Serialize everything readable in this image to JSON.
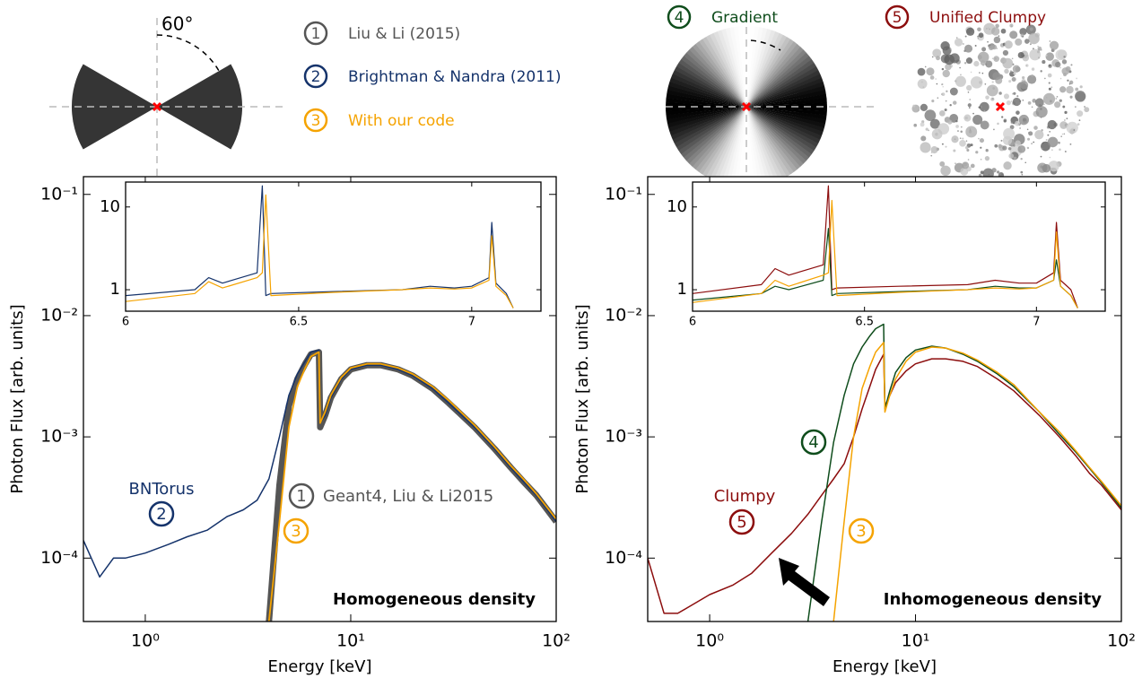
{
  "angle_label": "60°",
  "legend": [
    {
      "number": "1",
      "label": "Liu & Li (2015)",
      "color": "#555555"
    },
    {
      "number": "2",
      "label": "Brightman & Nandra (2011)",
      "color": "#15336b"
    },
    {
      "number": "3",
      "label": "With our code",
      "color": "#f5a300"
    },
    {
      "number": "4",
      "label": "Gradient",
      "color": "#0f4d1c"
    },
    {
      "number": "5",
      "label": "Unified Clumpy",
      "color": "#8c0d0d"
    }
  ],
  "chart_data": [
    {
      "type": "line",
      "x_scale": "log",
      "y_scale": "log",
      "xlabel": "Energy [keV]",
      "ylabel": "Photon Flux [arb. units]",
      "xlim": [
        0.5,
        100
      ],
      "ylim": [
        3e-05,
        0.14
      ],
      "xticks": [
        {
          "value": 1,
          "label": "10⁰"
        },
        {
          "value": 10,
          "label": "10¹"
        },
        {
          "value": 100,
          "label": "10²"
        }
      ],
      "yticks": [
        {
          "value": 0.0001,
          "label": "10⁻⁴"
        },
        {
          "value": 0.001,
          "label": "10⁻³"
        },
        {
          "value": 0.01,
          "label": "10⁻²"
        },
        {
          "value": 0.1,
          "label": "10⁻¹"
        }
      ],
      "x": [
        0.5,
        0.6,
        0.7,
        0.8,
        1,
        1.3,
        1.6,
        2,
        2.5,
        3,
        3.5,
        4,
        4.5,
        5,
        5.5,
        6,
        6.4,
        7,
        7.1,
        7.5,
        8,
        9,
        10,
        12,
        14,
        17,
        20,
        25,
        30,
        40,
        50,
        60,
        70,
        80,
        100
      ],
      "series": [
        {
          "color": "#555555",
          "width": 7,
          "values": [
            null,
            null,
            null,
            null,
            null,
            null,
            null,
            null,
            null,
            null,
            null,
            3e-05,
            0.0004,
            0.0018,
            0.003,
            0.004,
            0.0048,
            0.005,
            0.0012,
            0.0015,
            0.0021,
            0.003,
            0.0036,
            0.0039,
            0.0039,
            0.0036,
            0.0032,
            0.0025,
            0.0019,
            0.0012,
            0.0008,
            0.00056,
            0.00042,
            0.00033,
            0.0002
          ]
        },
        {
          "color": "#15336b",
          "width": 1.5,
          "values": [
            0.00014,
            7e-05,
            0.0001,
            0.0001,
            0.00011,
            0.00013,
            0.00015,
            0.00017,
            0.00022,
            0.00025,
            0.0003,
            0.00045,
            0.001,
            0.0022,
            0.0033,
            0.0042,
            0.005,
            0.0052,
            0.0013,
            0.0015,
            0.0021,
            0.003,
            0.0036,
            0.0039,
            0.0039,
            0.0036,
            0.0032,
            0.0025,
            0.0019,
            0.0012,
            0.0008,
            0.00056,
            0.00042,
            0.00033,
            0.0002
          ]
        },
        {
          "color": "#f5a300",
          "width": 1.8,
          "values": [
            null,
            null,
            null,
            null,
            null,
            null,
            null,
            null,
            null,
            null,
            null,
            3e-05,
            0.0002,
            0.0012,
            0.0026,
            0.0037,
            0.0046,
            0.005,
            0.0013,
            0.0016,
            0.0022,
            0.0031,
            0.0037,
            0.004,
            0.004,
            0.0037,
            0.0033,
            0.0026,
            0.002,
            0.00125,
            0.00083,
            0.00058,
            0.00044,
            0.00034,
            0.00021
          ]
        }
      ],
      "annotations": [
        {
          "text": "BNTorus",
          "color": "#15336b"
        },
        {
          "text": "2",
          "color": "#15336b",
          "circled": true
        },
        {
          "text": "1",
          "color": "#555555",
          "circled": true
        },
        {
          "text": "Geant4, Liu & Li2015",
          "color": "#555555"
        },
        {
          "text": "3",
          "color": "#f5a300",
          "circled": true
        },
        {
          "text": "Homogeneous density",
          "color": "#000000",
          "bold": true
        }
      ]
    },
    {
      "type": "line",
      "x_scale": "linear",
      "y_scale": "log",
      "xlim": [
        6,
        7.2
      ],
      "ylim": [
        0.55,
        20
      ],
      "xticks": [
        6,
        6.5,
        7
      ],
      "yticks": [
        1,
        10
      ],
      "x": [
        6,
        6.2,
        6.24,
        6.28,
        6.38,
        6.395,
        6.405,
        6.42,
        6.6,
        6.8,
        6.88,
        6.95,
        7.0,
        7.05,
        7.058,
        7.07,
        7.1,
        7.12
      ],
      "series": [
        {
          "color": "#15336b",
          "width": 1.2,
          "values": [
            0.85,
            1.0,
            1.4,
            1.2,
            1.6,
            18,
            0.85,
            0.9,
            0.95,
            1.0,
            1.1,
            1.05,
            1.1,
            1.4,
            6.5,
            1.2,
            0.9,
            0.6
          ]
        },
        {
          "color": "#f5a300",
          "width": 1.2,
          "values": [
            0.72,
            0.9,
            1.25,
            1.05,
            1.4,
            1.6,
            14,
            0.85,
            0.93,
            1.0,
            1.05,
            1.02,
            1.05,
            1.3,
            4.5,
            1.1,
            0.85,
            0.6
          ]
        }
      ]
    },
    {
      "type": "line",
      "x_scale": "log",
      "y_scale": "log",
      "xlabel": "Energy [keV]",
      "ylabel": "Photon Flux [arb. units]",
      "xlim": [
        0.5,
        100
      ],
      "ylim": [
        3e-05,
        0.14
      ],
      "xticks": [
        {
          "value": 1,
          "label": "10⁰"
        },
        {
          "value": 10,
          "label": "10¹"
        },
        {
          "value": 100,
          "label": "10²"
        }
      ],
      "yticks": [
        {
          "value": 0.0001,
          "label": "10⁻⁴"
        },
        {
          "value": 0.001,
          "label": "10⁻³"
        },
        {
          "value": 0.01,
          "label": "10⁻²"
        },
        {
          "value": 0.1,
          "label": "10⁻¹"
        }
      ],
      "x": [
        0.5,
        0.6,
        0.7,
        0.8,
        1,
        1.3,
        1.6,
        2,
        2.5,
        3,
        3.5,
        4,
        4.5,
        5,
        5.5,
        6,
        6.4,
        7,
        7.1,
        7.5,
        8,
        9,
        10,
        12,
        14,
        17,
        20,
        25,
        30,
        40,
        50,
        60,
        70,
        80,
        100
      ],
      "series": [
        {
          "color": "#8c0d0d",
          "width": 1.5,
          "values": [
            0.0001,
            3.5e-05,
            3.5e-05,
            4e-05,
            5e-05,
            6e-05,
            7.5e-05,
            0.00011,
            0.00016,
            0.00023,
            0.00033,
            0.00045,
            0.0006,
            0.001,
            0.0017,
            0.0026,
            0.0036,
            0.0048,
            0.0018,
            0.0022,
            0.0028,
            0.0035,
            0.004,
            0.0044,
            0.0044,
            0.0042,
            0.0038,
            0.003,
            0.0024,
            0.0015,
            0.001,
            0.0007,
            0.0005,
            0.0004,
            0.00025
          ]
        },
        {
          "color": "#0f4d1c",
          "width": 1.5,
          "values": [
            null,
            null,
            null,
            null,
            null,
            null,
            null,
            null,
            null,
            3e-05,
            0.0002,
            0.0009,
            0.0022,
            0.004,
            0.0055,
            0.0068,
            0.0078,
            0.0085,
            0.0017,
            0.0024,
            0.0034,
            0.0045,
            0.0052,
            0.0056,
            0.0054,
            0.0048,
            0.0042,
            0.0033,
            0.0026,
            0.0016,
            0.00105,
            0.00075,
            0.00055,
            0.00042,
            0.00026
          ]
        },
        {
          "color": "#f5a300",
          "width": 1.5,
          "values": [
            null,
            null,
            null,
            null,
            null,
            null,
            null,
            null,
            null,
            null,
            null,
            3e-05,
            0.0002,
            0.001,
            0.0025,
            0.0038,
            0.005,
            0.006,
            0.0016,
            0.0022,
            0.003,
            0.0042,
            0.005,
            0.0055,
            0.0054,
            0.0049,
            0.0043,
            0.0034,
            0.0027,
            0.0016,
            0.0011,
            0.00077,
            0.00056,
            0.00043,
            0.00027
          ]
        }
      ],
      "annotations": [
        {
          "text": "4",
          "color": "#0f4d1c",
          "circled": true
        },
        {
          "text": "Clumpy",
          "color": "#8c0d0d"
        },
        {
          "text": "5",
          "color": "#8c0d0d",
          "circled": true
        },
        {
          "text": "3",
          "color": "#f5a300",
          "circled": true
        },
        {
          "text": "Inhomogeneous density",
          "color": "#000000",
          "bold": true
        }
      ]
    },
    {
      "type": "line",
      "x_scale": "linear",
      "y_scale": "log",
      "xlim": [
        6,
        7.2
      ],
      "ylim": [
        0.55,
        20
      ],
      "xticks": [
        6,
        6.5,
        7
      ],
      "yticks": [
        1,
        10
      ],
      "x": [
        6,
        6.2,
        6.24,
        6.28,
        6.38,
        6.395,
        6.405,
        6.42,
        6.6,
        6.8,
        6.88,
        6.95,
        7.0,
        7.05,
        7.058,
        7.07,
        7.1,
        7.12
      ],
      "series": [
        {
          "color": "#8c0d0d",
          "width": 1.2,
          "values": [
            0.9,
            1.15,
            1.8,
            1.5,
            2.0,
            18,
            1.0,
            1.05,
            1.1,
            1.15,
            1.3,
            1.2,
            1.2,
            1.6,
            6.5,
            1.3,
            1.0,
            0.6
          ]
        },
        {
          "color": "#0f4d1c",
          "width": 1.2,
          "values": [
            0.75,
            0.9,
            1.1,
            1.0,
            1.3,
            5.5,
            0.85,
            0.9,
            0.95,
            1.0,
            1.1,
            1.05,
            1.05,
            1.3,
            2.3,
            1.1,
            0.85,
            0.6
          ]
        },
        {
          "color": "#f5a300",
          "width": 1.2,
          "values": [
            0.7,
            0.9,
            1.3,
            1.1,
            1.5,
            1.6,
            12,
            0.85,
            0.93,
            1.0,
            1.05,
            1.02,
            1.05,
            1.3,
            5,
            1.1,
            0.85,
            0.6
          ]
        }
      ]
    }
  ]
}
